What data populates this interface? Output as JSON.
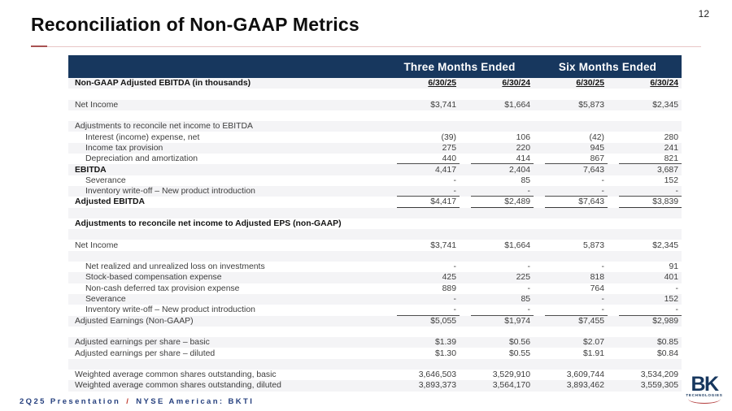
{
  "page": {
    "number": "12",
    "title": "Reconciliation of Non-GAAP Metrics"
  },
  "table": {
    "groups": [
      "Three Months Ended",
      "Six Months Ended"
    ],
    "column_dates": [
      "6/30/25",
      "6/30/24",
      "6/30/25",
      "6/30/24"
    ],
    "rows": [
      {
        "label": "Non-GAAP Adjusted EBITDA (in thousands)",
        "bold": true,
        "date": true,
        "values": [
          "6/30/25",
          "6/30/24",
          "6/30/25",
          "6/30/24"
        ]
      },
      {
        "label": ""
      },
      {
        "label": "Net Income",
        "values": [
          "$3,741",
          "$1,664",
          "$5,873",
          "$2,345"
        ]
      },
      {
        "label": ""
      },
      {
        "label": "Adjustments to reconcile net income to EBITDA"
      },
      {
        "label": "Interest (income) expense, net",
        "indent": 1,
        "values": [
          "(39)",
          "106",
          "(42)",
          "280"
        ]
      },
      {
        "label": "Income tax provision",
        "indent": 1,
        "values": [
          "275",
          "220",
          "945",
          "241"
        ]
      },
      {
        "label": "Depreciation and amortization",
        "indent": 1,
        "values": [
          "440",
          "414",
          "867",
          "821"
        ],
        "border": "single"
      },
      {
        "label": "EBITDA",
        "bold": true,
        "values": [
          "4,417",
          "2,404",
          "7,643",
          "3,687"
        ]
      },
      {
        "label": "Severance",
        "indent": 1,
        "values": [
          "-",
          "85",
          "-",
          "152"
        ]
      },
      {
        "label": "Inventory write-off – New product introduction",
        "indent": 1,
        "values": [
          "-",
          "-",
          "-",
          "-"
        ],
        "border": "single"
      },
      {
        "label": "Adjusted EBITDA",
        "bold": true,
        "values": [
          "$4,417",
          "$2,489",
          "$7,643",
          "$3,839"
        ],
        "border": "strong"
      },
      {
        "label": ""
      },
      {
        "label": "Adjustments to reconcile net income to Adjusted EPS (non-GAAP)",
        "bold": true
      },
      {
        "label": ""
      },
      {
        "label": "Net Income",
        "values": [
          "$3,741",
          "$1,664",
          "5,873",
          "$2,345"
        ]
      },
      {
        "label": ""
      },
      {
        "label": "Net realized and unrealized loss on investments",
        "indent": 1,
        "values": [
          "-",
          "-",
          "-",
          "91"
        ]
      },
      {
        "label": "Stock-based compensation expense",
        "indent": 1,
        "values": [
          "425",
          "225",
          "818",
          "401"
        ]
      },
      {
        "label": "Non-cash deferred tax provision expense",
        "indent": 1,
        "values": [
          "889",
          "-",
          "764",
          "-"
        ]
      },
      {
        "label": "Severance",
        "indent": 1,
        "values": [
          "-",
          "85",
          "-",
          "152"
        ]
      },
      {
        "label": "Inventory write-off – New product introduction",
        "indent": 1,
        "values": [
          "-",
          "-",
          "-",
          "-"
        ],
        "border": "single"
      },
      {
        "label": "Adjusted Earnings (Non-GAAP)",
        "values": [
          "$5,055",
          "$1,974",
          "$7,455",
          "$2,989"
        ]
      },
      {
        "label": ""
      },
      {
        "label": "Adjusted earnings per share – basic",
        "values": [
          "$1.39",
          "$0.56",
          "$2.07",
          "$0.85"
        ]
      },
      {
        "label": "Adjusted earnings per share – diluted",
        "values": [
          "$1.30",
          "$0.55",
          "$1.91",
          "$0.84"
        ]
      },
      {
        "label": ""
      },
      {
        "label": "Weighted average common shares outstanding, basic",
        "values": [
          "3,646,503",
          "3,529,910",
          "3,609,744",
          "3,534,209"
        ]
      },
      {
        "label": "Weighted average common shares outstanding, diluted",
        "values": [
          "3,893,373",
          "3,564,170",
          "3,893,462",
          "3,559,305"
        ]
      }
    ]
  },
  "footer": {
    "presentation": "2Q25 Presentation",
    "separator": "/",
    "listing": "NYSE American: BKTI"
  },
  "logo": {
    "name": "BK",
    "subtext": "TECHNOLOGIES"
  },
  "colors": {
    "navy": "#17375e",
    "accent_red": "#c0392b",
    "stripe": "#f4f4f6"
  }
}
